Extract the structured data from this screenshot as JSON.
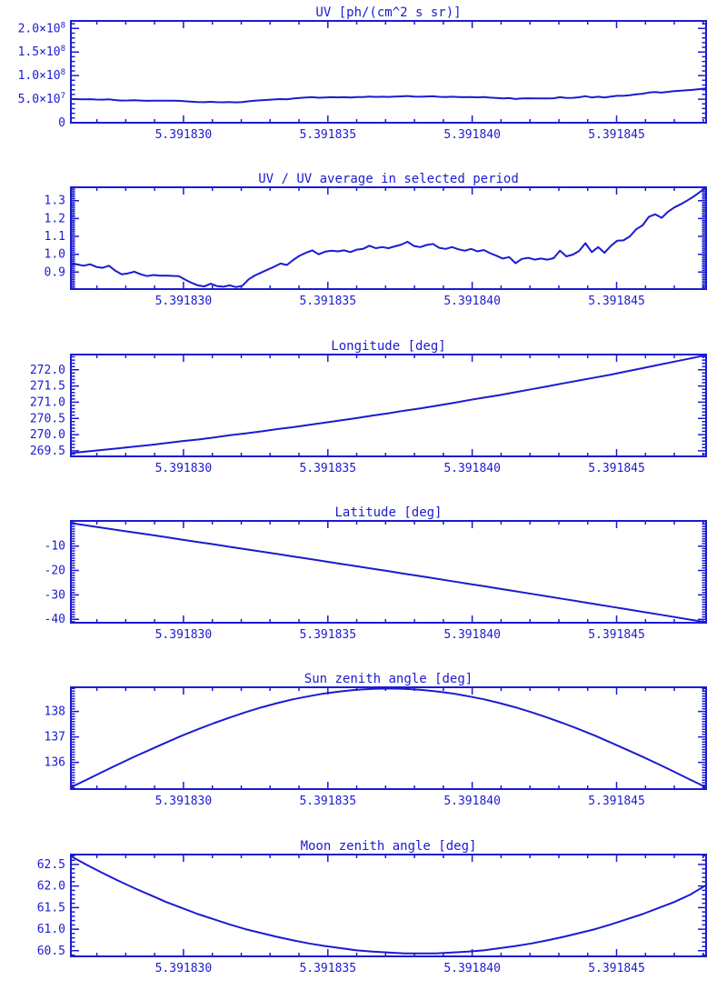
{
  "page": {
    "background": "#ffffff",
    "plot_color": "#1b1bd1"
  },
  "chart_data": {
    "shared_x_axis": {
      "min": 5.3918261,
      "max": 5.3918481,
      "minor_step": 1e-06,
      "majors": [
        {
          "v": 5.39183,
          "label": "5.391830"
        },
        {
          "v": 5.391835,
          "label": "5.391835"
        },
        {
          "v": 5.39184,
          "label": "5.391840"
        },
        {
          "v": 5.391845,
          "label": "5.391845"
        }
      ]
    },
    "panels": [
      {
        "id": "uv",
        "type": "line",
        "title": "UV [ph/(cm^2 s sr)]",
        "y_unit": "1e7 ph/(cm^2 s sr)",
        "y_min": 0,
        "y_max": 21.6,
        "y_minor_step": 1,
        "y_majors": [
          {
            "v": 0,
            "label": "0"
          },
          {
            "v": 5,
            "label": "5.0×10^7"
          },
          {
            "v": 10,
            "label": "1.0×10^8"
          },
          {
            "v": 15,
            "label": "1.5×10^8"
          },
          {
            "v": 20,
            "label": "2.0×10^8"
          }
        ],
        "x_sampling": "uniform from x_min to x_max",
        "values": [
          5.04,
          5.0,
          4.96,
          5.0,
          4.92,
          4.9,
          4.96,
          4.81,
          4.71,
          4.73,
          4.78,
          4.71,
          4.65,
          4.69,
          4.66,
          4.67,
          4.66,
          4.65,
          4.55,
          4.45,
          4.38,
          4.35,
          4.43,
          4.36,
          4.34,
          4.38,
          4.32,
          4.37,
          4.56,
          4.67,
          4.76,
          4.84,
          4.93,
          5.02,
          4.98,
          5.13,
          5.26,
          5.34,
          5.42,
          5.3,
          5.37,
          5.41,
          5.38,
          5.42,
          5.36,
          5.44,
          5.46,
          5.55,
          5.48,
          5.51,
          5.48,
          5.53,
          5.59,
          5.67,
          5.54,
          5.51,
          5.58,
          5.61,
          5.49,
          5.46,
          5.51,
          5.45,
          5.41,
          5.46,
          5.38,
          5.43,
          5.33,
          5.26,
          5.17,
          5.22,
          5.04,
          5.16,
          5.19,
          5.14,
          5.17,
          5.14,
          5.18,
          5.41,
          5.24,
          5.29,
          5.4,
          5.63,
          5.36,
          5.51,
          5.34,
          5.54,
          5.7,
          5.71,
          5.83,
          6.04,
          6.16,
          6.41,
          6.49,
          6.38,
          6.56,
          6.69,
          6.78,
          6.89,
          7.01,
          7.14,
          7.29
        ]
      },
      {
        "id": "uv-ratio",
        "type": "line",
        "title": "UV / UV average in selected period",
        "y_min": 0.805,
        "y_max": 1.375,
        "y_minor_step": 0.01,
        "y_majors": [
          {
            "v": 0.9,
            "label": "0.9"
          },
          {
            "v": 1.0,
            "label": "1.0"
          },
          {
            "v": 1.1,
            "label": "1.1"
          },
          {
            "v": 1.2,
            "label": "1.2"
          },
          {
            "v": 1.3,
            "label": "1.3"
          }
        ],
        "x_sampling": "uniform from x_min to x_max",
        "values": [
          0.95,
          0.943,
          0.936,
          0.944,
          0.929,
          0.924,
          0.936,
          0.908,
          0.888,
          0.893,
          0.902,
          0.888,
          0.878,
          0.884,
          0.88,
          0.881,
          0.879,
          0.878,
          0.858,
          0.84,
          0.826,
          0.82,
          0.835,
          0.822,
          0.818,
          0.826,
          0.816,
          0.824,
          0.86,
          0.882,
          0.898,
          0.914,
          0.93,
          0.948,
          0.94,
          0.968,
          0.992,
          1.008,
          1.022,
          1.0,
          1.014,
          1.02,
          1.016,
          1.022,
          1.012,
          1.026,
          1.03,
          1.048,
          1.034,
          1.04,
          1.034,
          1.044,
          1.054,
          1.07,
          1.046,
          1.04,
          1.052,
          1.058,
          1.036,
          1.03,
          1.04,
          1.028,
          1.02,
          1.03,
          1.016,
          1.024,
          1.006,
          0.992,
          0.976,
          0.984,
          0.95,
          0.974,
          0.98,
          0.97,
          0.976,
          0.97,
          0.978,
          1.02,
          0.988,
          0.998,
          1.018,
          1.062,
          1.012,
          1.04,
          1.008,
          1.046,
          1.076,
          1.078,
          1.1,
          1.14,
          1.162,
          1.21,
          1.224,
          1.204,
          1.238,
          1.262,
          1.28,
          1.3,
          1.322,
          1.348,
          1.375
        ]
      },
      {
        "id": "longitude",
        "type": "line",
        "title": "Longitude [deg]",
        "y_unit": "deg",
        "y_min": 269.33,
        "y_max": 272.47,
        "y_minor_step": 0.1,
        "y_majors": [
          {
            "v": 269.5,
            "label": "269.5"
          },
          {
            "v": 270.0,
            "label": "270.0"
          },
          {
            "v": 270.5,
            "label": "270.5"
          },
          {
            "v": 271.0,
            "label": "271.0"
          },
          {
            "v": 271.5,
            "label": "271.5"
          },
          {
            "v": 272.0,
            "label": "272.0"
          }
        ],
        "x_sampling": "uniform from x_min to x_max",
        "values": [
          269.43,
          269.48,
          269.53,
          269.58,
          269.63,
          269.68,
          269.74,
          269.8,
          269.85,
          269.91,
          269.98,
          270.04,
          270.1,
          270.17,
          270.23,
          270.3,
          270.37,
          270.44,
          270.51,
          270.59,
          270.66,
          270.74,
          270.81,
          270.89,
          270.97,
          271.06,
          271.14,
          271.22,
          271.31,
          271.4,
          271.49,
          271.58,
          271.67,
          271.76,
          271.85,
          271.95,
          272.05,
          272.15,
          272.25,
          272.35,
          272.45
        ]
      },
      {
        "id": "latitude",
        "type": "line",
        "title": "Latitude [deg]",
        "y_unit": "deg",
        "y_min": -41.4,
        "y_max": 0.3,
        "y_minor_step": 1,
        "y_majors": [
          {
            "v": -40,
            "label": "-40"
          },
          {
            "v": -30,
            "label": "-30"
          },
          {
            "v": -20,
            "label": "-20"
          },
          {
            "v": -10,
            "label": "-10"
          }
        ],
        "x_sampling": "uniform from x_min to x_max",
        "values": [
          -0.6,
          -1.56,
          -2.52,
          -3.48,
          -4.44,
          -5.41,
          -6.38,
          -7.36,
          -8.34,
          -9.32,
          -10.3,
          -11.29,
          -12.28,
          -13.27,
          -14.26,
          -15.26,
          -16.26,
          -17.27,
          -18.28,
          -19.29,
          -20.3,
          -21.32,
          -22.34,
          -23.36,
          -24.38,
          -25.41,
          -26.44,
          -27.48,
          -28.52,
          -29.56,
          -30.6,
          -31.65,
          -32.7,
          -33.75,
          -34.8,
          -35.86,
          -36.92,
          -37.99,
          -39.06,
          -40.13,
          -41.2
        ]
      },
      {
        "id": "sun-zenith",
        "type": "line",
        "title": "Sun zenith angle [deg]",
        "y_unit": "deg",
        "y_min": 134.95,
        "y_max": 138.95,
        "y_minor_step": 0.1,
        "y_majors": [
          {
            "v": 136,
            "label": "136"
          },
          {
            "v": 137,
            "label": "137"
          },
          {
            "v": 138,
            "label": "138"
          }
        ],
        "x_sampling": "uniform from x_min to x_max",
        "values": [
          135.02,
          135.32,
          135.63,
          135.93,
          136.22,
          136.5,
          136.78,
          137.05,
          137.3,
          137.54,
          137.76,
          137.97,
          138.16,
          138.33,
          138.48,
          138.6,
          138.71,
          138.79,
          138.85,
          138.89,
          138.9,
          138.89,
          138.85,
          138.79,
          138.71,
          138.6,
          138.48,
          138.33,
          138.16,
          137.97,
          137.76,
          137.54,
          137.3,
          137.05,
          136.78,
          136.5,
          136.22,
          135.93,
          135.63,
          135.32,
          135.02
        ]
      },
      {
        "id": "moon-zenith",
        "type": "line",
        "title": "Moon zenith angle [deg]",
        "y_unit": "deg",
        "y_min": 60.37,
        "y_max": 62.73,
        "y_minor_step": 0.1,
        "y_majors": [
          {
            "v": 60.5,
            "label": "60.5"
          },
          {
            "v": 61.0,
            "label": "61.0"
          },
          {
            "v": 61.5,
            "label": "61.5"
          },
          {
            "v": 62.0,
            "label": "62.0"
          },
          {
            "v": 62.5,
            "label": "62.5"
          }
        ],
        "x_sampling": "uniform from x_min to x_max",
        "values": [
          62.69,
          62.49,
          62.3,
          62.12,
          61.95,
          61.79,
          61.63,
          61.49,
          61.35,
          61.23,
          61.11,
          61.0,
          60.91,
          60.82,
          60.74,
          60.67,
          60.61,
          60.56,
          60.51,
          60.48,
          60.46,
          60.44,
          60.44,
          60.44,
          60.46,
          60.48,
          60.51,
          60.56,
          60.61,
          60.67,
          60.74,
          60.82,
          60.91,
          61.0,
          61.11,
          61.23,
          61.35,
          61.49,
          61.63,
          61.8,
          62.02
        ]
      }
    ]
  }
}
